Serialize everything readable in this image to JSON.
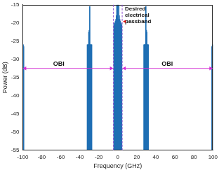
{
  "chart_data": {
    "type": "stem",
    "x": [
      -100,
      -99.5,
      -99,
      -32,
      -31.5,
      -31,
      -30.5,
      -30,
      -29.5,
      -29,
      -28.5,
      -28,
      -27.5,
      -4,
      -3.5,
      -3,
      -2.5,
      -2,
      -1.5,
      -1,
      -0.5,
      0,
      0.5,
      1,
      1.5,
      2,
      2.5,
      3,
      3.5,
      4,
      27.5,
      28,
      28.5,
      29,
      29.5,
      30,
      30.5,
      31,
      31.5,
      32,
      99,
      99.5,
      100
    ],
    "values": [
      -26,
      -26,
      -26.5,
      -26,
      -26,
      -26,
      -22.5,
      -22,
      -15.5,
      -26,
      -26,
      -26,
      -26,
      -20.5,
      -20,
      -20,
      -19.5,
      -19,
      -18,
      -15,
      -19,
      -15,
      -19,
      -15,
      -18,
      -19,
      -19.5,
      -20,
      -20,
      -20.5,
      -26,
      -26,
      -26,
      -26,
      -15.5,
      -22,
      -22.5,
      -26,
      -26,
      -26,
      -26.5,
      -26,
      -26
    ],
    "color": "#1f6fb4",
    "xlabel": "Frequency (GHz)",
    "ylabel": "Power (dB)",
    "xlim": [
      -100,
      100
    ],
    "xticks": [
      -100,
      -80,
      -60,
      -40,
      -20,
      0,
      20,
      40,
      60,
      80,
      100
    ],
    "ylim": [
      -55,
      -15
    ],
    "yticks": [
      -55,
      -50,
      -45,
      -40,
      -35,
      -30,
      -25,
      -20,
      -15
    ],
    "grid": false,
    "annotations": [
      "OBI",
      "OBI",
      "Desired electrical passband"
    ]
  }
}
